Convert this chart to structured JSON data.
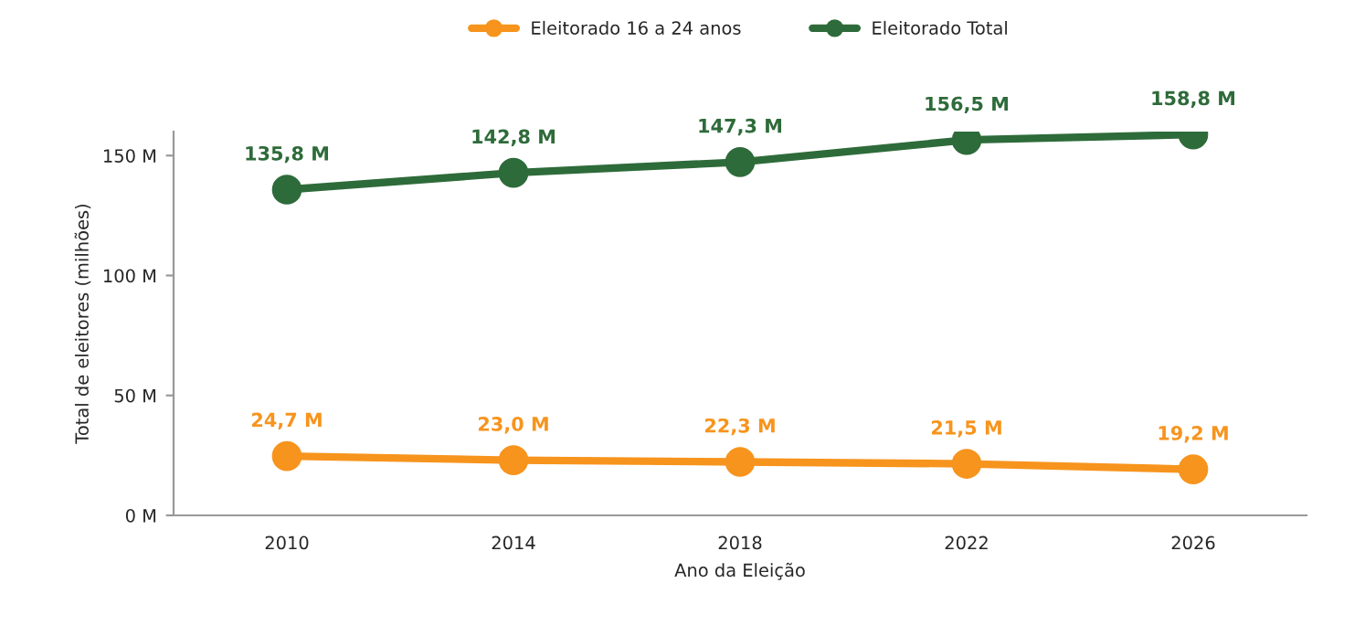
{
  "chart_data": {
    "type": "line",
    "xlabel": "Ano da Eleição",
    "ylabel": "Total de eleitores (milhões)",
    "categories": [
      "2010",
      "2014",
      "2018",
      "2022",
      "2026"
    ],
    "series": [
      {
        "name": "Eleitorado 16 a 24 anos",
        "color": "#f7941d",
        "values": [
          24.7,
          23.0,
          22.3,
          21.5,
          19.2
        ],
        "value_labels": [
          "24,7 M",
          "23,0 M",
          "22,3 M",
          "21,5 M",
          "19,2 M"
        ]
      },
      {
        "name": "Eleitorado Total",
        "color": "#2e6b3a",
        "values": [
          135.8,
          142.8,
          147.3,
          156.5,
          158.8
        ],
        "value_labels": [
          "135,8 M",
          "142,8 M",
          "147,3 M",
          "156,5 M",
          "158,8 M"
        ]
      }
    ],
    "ylim": [
      0,
      160
    ],
    "yticks": [
      {
        "value": 0,
        "label": "0 M"
      },
      {
        "value": 50,
        "label": "50 M"
      },
      {
        "value": 100,
        "label": "100 M"
      },
      {
        "value": 150,
        "label": "150 M"
      }
    ],
    "legend": "top",
    "grid": false,
    "marker": "circle",
    "line_style": "solid"
  }
}
